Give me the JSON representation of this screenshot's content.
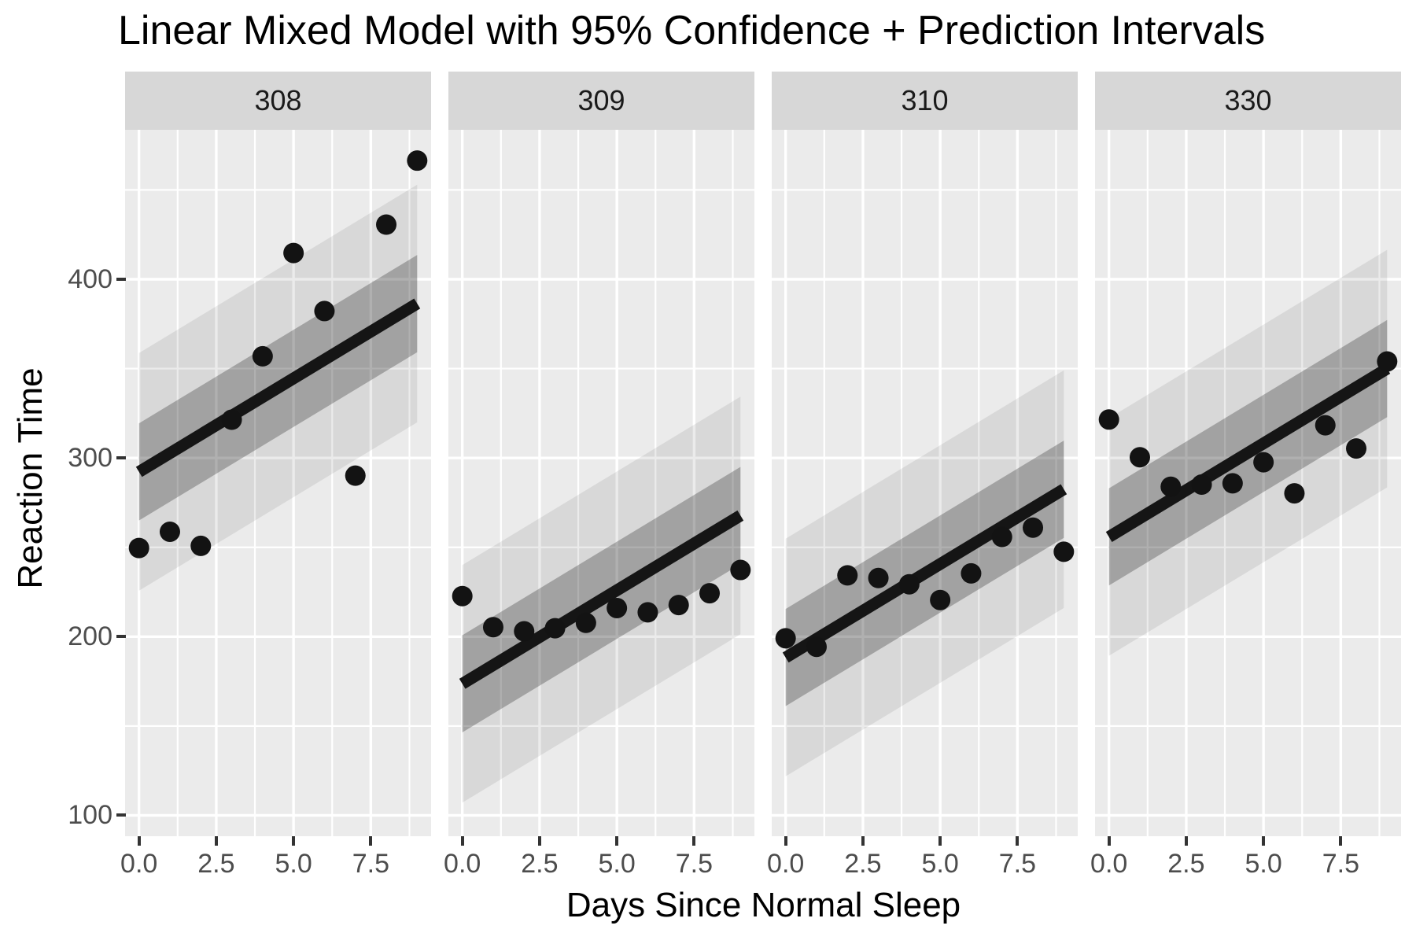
{
  "chart_data": {
    "type": "scatter",
    "title": "Linear Mixed Model with 95% Confidence + Prediction Intervals",
    "xlabel": "Days Since Normal Sleep",
    "ylabel": "Reaction Time",
    "legend": "none",
    "grid": "on",
    "x_domain": [
      -0.45,
      9.45
    ],
    "y_domain": [
      88.3,
      483.65
    ],
    "x_ticks": [
      0,
      2.5,
      5,
      7.5
    ],
    "x_tick_labels": [
      "0.0",
      "2.5",
      "5.0",
      "7.5"
    ],
    "x_minor_ticks": [
      1.25,
      3.75,
      6.25,
      8.75
    ],
    "y_ticks": [
      100,
      200,
      300,
      400
    ],
    "y_tick_labels": [
      "100",
      "200",
      "300",
      "400"
    ],
    "y_minor_ticks": [
      150,
      250,
      350,
      450
    ],
    "slope": 10.467,
    "ci_half_width": 27.2,
    "pi_half_width": 66.5,
    "facets": [
      {
        "label": "308",
        "intercept": 292.2,
        "days": [
          0,
          1,
          2,
          3,
          4,
          5,
          6,
          7,
          8,
          9
        ],
        "reaction": [
          249.6,
          258.7,
          250.8,
          321.4,
          356.9,
          414.7,
          382.2,
          290.1,
          430.6,
          466.4
        ]
      },
      {
        "label": "309",
        "intercept": 173.6,
        "days": [
          0,
          1,
          2,
          3,
          4,
          5,
          6,
          7,
          8,
          9
        ],
        "reaction": [
          222.7,
          205.3,
          203.0,
          204.7,
          207.7,
          216.0,
          213.6,
          217.7,
          224.3,
          237.3
        ]
      },
      {
        "label": "310",
        "intercept": 188.3,
        "days": [
          0,
          1,
          2,
          3,
          4,
          5,
          6,
          7,
          8,
          9
        ],
        "reaction": [
          199.1,
          194.3,
          234.3,
          232.8,
          229.3,
          220.5,
          235.4,
          255.8,
          261.0,
          247.5
        ]
      },
      {
        "label": "330",
        "intercept": 255.8,
        "days": [
          0,
          1,
          2,
          3,
          4,
          5,
          6,
          7,
          8,
          9
        ],
        "reaction": [
          321.5,
          300.4,
          283.9,
          285.1,
          285.8,
          297.6,
          280.2,
          318.3,
          305.3,
          354.0
        ]
      }
    ],
    "colors": {
      "panel_background": "#ebebeb",
      "gridline": "#ffffff",
      "strip_background": "#d7d7d7",
      "strip_text": "#1a1a1a",
      "tick_label": "#4d4d4d",
      "tick_mark": "#333333",
      "point": "#131313",
      "fit_line": "#151515",
      "ci_band": "rgba(0,0,0,0.25)",
      "pi_band": "rgba(0,0,0,0.08)",
      "title_text": "#000000"
    }
  }
}
